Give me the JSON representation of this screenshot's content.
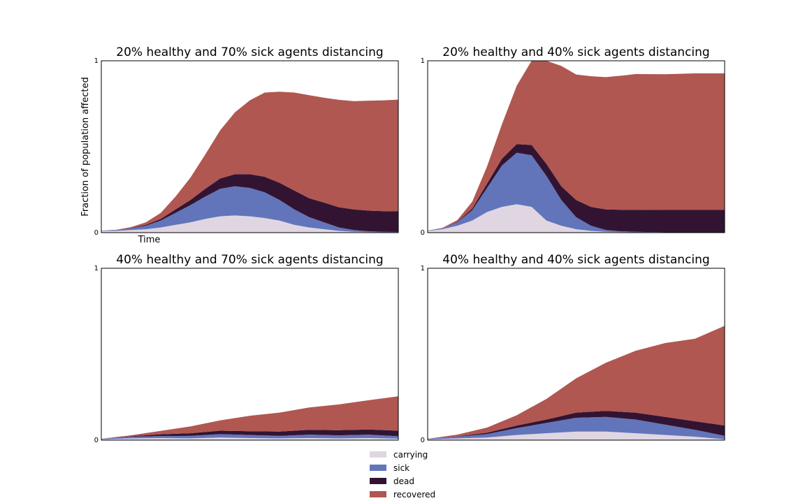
{
  "chart_data": [
    {
      "type": "area",
      "stacked": true,
      "title": "20% healthy and 70% sick agents distancing",
      "xlabel": "Time",
      "ylabel": "Fraction of population affected",
      "ylim": [
        0,
        1
      ],
      "yticks": [
        "0",
        "1"
      ],
      "xlim": [
        0,
        100
      ],
      "series": [
        {
          "name": "carrying",
          "color": "#e0d6e2",
          "points": [
            [
              0,
              0.01
            ],
            [
              5,
              0.01
            ],
            [
              10,
              0.015
            ],
            [
              15,
              0.02
            ],
            [
              20,
              0.03
            ],
            [
              25,
              0.045
            ],
            [
              30,
              0.06
            ],
            [
              35,
              0.08
            ],
            [
              40,
              0.095
            ],
            [
              45,
              0.1
            ],
            [
              50,
              0.095
            ],
            [
              55,
              0.085
            ],
            [
              60,
              0.07
            ],
            [
              65,
              0.045
            ],
            [
              70,
              0.03
            ],
            [
              75,
              0.02
            ],
            [
              80,
              0.01
            ],
            [
              85,
              0.005
            ],
            [
              90,
              0.003
            ],
            [
              95,
              0.002
            ],
            [
              100,
              0.002
            ]
          ]
        },
        {
          "name": "sick",
          "color": "#6275bb",
          "points": [
            [
              0,
              0.002
            ],
            [
              5,
              0.005
            ],
            [
              10,
              0.01
            ],
            [
              15,
              0.02
            ],
            [
              20,
              0.04
            ],
            [
              25,
              0.07
            ],
            [
              30,
              0.1
            ],
            [
              35,
              0.13
            ],
            [
              40,
              0.16
            ],
            [
              45,
              0.17
            ],
            [
              50,
              0.165
            ],
            [
              55,
              0.15
            ],
            [
              60,
              0.12
            ],
            [
              65,
              0.09
            ],
            [
              70,
              0.06
            ],
            [
              75,
              0.04
            ],
            [
              80,
              0.02
            ],
            [
              85,
              0.01
            ],
            [
              90,
              0.005
            ],
            [
              95,
              0.003
            ],
            [
              100,
              0.002
            ]
          ]
        },
        {
          "name": "dead",
          "color": "#321432",
          "points": [
            [
              0,
              0.0
            ],
            [
              5,
              0.0
            ],
            [
              10,
              0.002
            ],
            [
              15,
              0.005
            ],
            [
              20,
              0.01
            ],
            [
              25,
              0.02
            ],
            [
              30,
              0.03
            ],
            [
              35,
              0.045
            ],
            [
              40,
              0.06
            ],
            [
              45,
              0.07
            ],
            [
              50,
              0.08
            ],
            [
              55,
              0.09
            ],
            [
              60,
              0.1
            ],
            [
              65,
              0.11
            ],
            [
              70,
              0.11
            ],
            [
              75,
              0.115
            ],
            [
              80,
              0.118
            ],
            [
              85,
              0.12
            ],
            [
              90,
              0.12
            ],
            [
              95,
              0.12
            ],
            [
              100,
              0.12
            ]
          ]
        },
        {
          "name": "recovered",
          "color": "#b05751",
          "points": [
            [
              0,
              0.0
            ],
            [
              5,
              0.002
            ],
            [
              10,
              0.005
            ],
            [
              15,
              0.015
            ],
            [
              20,
              0.035
            ],
            [
              25,
              0.075
            ],
            [
              30,
              0.13
            ],
            [
              35,
              0.2
            ],
            [
              40,
              0.28
            ],
            [
              45,
              0.36
            ],
            [
              50,
              0.43
            ],
            [
              55,
              0.49
            ],
            [
              60,
              0.53
            ],
            [
              65,
              0.57
            ],
            [
              70,
              0.6
            ],
            [
              75,
              0.61
            ],
            [
              80,
              0.625
            ],
            [
              85,
              0.63
            ],
            [
              90,
              0.64
            ],
            [
              95,
              0.645
            ],
            [
              100,
              0.65
            ]
          ]
        }
      ]
    },
    {
      "type": "area",
      "stacked": true,
      "title": "20% healthy and 40% sick agents distancing",
      "xlabel": "",
      "ylabel": "",
      "ylim": [
        0,
        1
      ],
      "yticks": [
        "0",
        "1"
      ],
      "xlim": [
        0,
        100
      ],
      "series": [
        {
          "name": "carrying",
          "color": "#e0d6e2",
          "points": [
            [
              0,
              0.01
            ],
            [
              5,
              0.02
            ],
            [
              10,
              0.04
            ],
            [
              15,
              0.07
            ],
            [
              20,
              0.12
            ],
            [
              25,
              0.15
            ],
            [
              30,
              0.165
            ],
            [
              35,
              0.15
            ],
            [
              40,
              0.07
            ],
            [
              45,
              0.04
            ],
            [
              50,
              0.02
            ],
            [
              55,
              0.01
            ],
            [
              60,
              0.005
            ],
            [
              65,
              0.003
            ],
            [
              70,
              0.002
            ],
            [
              80,
              0.001
            ],
            [
              90,
              0.001
            ],
            [
              100,
              0.001
            ]
          ]
        },
        {
          "name": "sick",
          "color": "#6275bb",
          "points": [
            [
              0,
              0.002
            ],
            [
              5,
              0.005
            ],
            [
              10,
              0.02
            ],
            [
              15,
              0.06
            ],
            [
              20,
              0.14
            ],
            [
              25,
              0.24
            ],
            [
              30,
              0.3
            ],
            [
              35,
              0.3
            ],
            [
              40,
              0.26
            ],
            [
              45,
              0.15
            ],
            [
              50,
              0.07
            ],
            [
              55,
              0.03
            ],
            [
              60,
              0.01
            ],
            [
              65,
              0.005
            ],
            [
              70,
              0.003
            ],
            [
              80,
              0.001
            ],
            [
              90,
              0.001
            ],
            [
              100,
              0.001
            ]
          ]
        },
        {
          "name": "dead",
          "color": "#321432",
          "points": [
            [
              0,
              0.0
            ],
            [
              5,
              0.0
            ],
            [
              10,
              0.003
            ],
            [
              15,
              0.01
            ],
            [
              20,
              0.025
            ],
            [
              25,
              0.04
            ],
            [
              30,
              0.05
            ],
            [
              35,
              0.06
            ],
            [
              40,
              0.07
            ],
            [
              45,
              0.08
            ],
            [
              50,
              0.1
            ],
            [
              55,
              0.11
            ],
            [
              60,
              0.12
            ],
            [
              65,
              0.125
            ],
            [
              70,
              0.128
            ],
            [
              80,
              0.13
            ],
            [
              90,
              0.13
            ],
            [
              100,
              0.13
            ]
          ]
        },
        {
          "name": "recovered",
          "color": "#b05751",
          "points": [
            [
              0,
              0.0
            ],
            [
              5,
              0.003
            ],
            [
              10,
              0.01
            ],
            [
              15,
              0.04
            ],
            [
              20,
              0.1
            ],
            [
              25,
              0.2
            ],
            [
              30,
              0.34
            ],
            [
              35,
              0.52
            ],
            [
              40,
              0.62
            ],
            [
              45,
              0.7
            ],
            [
              50,
              0.73
            ],
            [
              55,
              0.76
            ],
            [
              60,
              0.77
            ],
            [
              65,
              0.78
            ],
            [
              70,
              0.79
            ],
            [
              80,
              0.79
            ],
            [
              90,
              0.795
            ],
            [
              100,
              0.795
            ]
          ]
        }
      ]
    },
    {
      "type": "area",
      "stacked": true,
      "title": "40% healthy and 70% sick agents distancing",
      "xlabel": "",
      "ylabel": "",
      "ylim": [
        0,
        1
      ],
      "yticks": [
        "0",
        "1"
      ],
      "xlim": [
        0,
        100
      ],
      "series": [
        {
          "name": "carrying",
          "color": "#e0d6e2",
          "points": [
            [
              0,
              0.005
            ],
            [
              10,
              0.01
            ],
            [
              20,
              0.012
            ],
            [
              30,
              0.01
            ],
            [
              40,
              0.015
            ],
            [
              50,
              0.012
            ],
            [
              60,
              0.01
            ],
            [
              70,
              0.012
            ],
            [
              80,
              0.01
            ],
            [
              90,
              0.012
            ],
            [
              100,
              0.008
            ]
          ]
        },
        {
          "name": "sick",
          "color": "#6275bb",
          "points": [
            [
              0,
              0.003
            ],
            [
              10,
              0.01
            ],
            [
              20,
              0.012
            ],
            [
              30,
              0.015
            ],
            [
              40,
              0.02
            ],
            [
              50,
              0.018
            ],
            [
              60,
              0.015
            ],
            [
              70,
              0.02
            ],
            [
              80,
              0.018
            ],
            [
              90,
              0.02
            ],
            [
              100,
              0.015
            ]
          ]
        },
        {
          "name": "dead",
          "color": "#321432",
          "points": [
            [
              0,
              0.0
            ],
            [
              10,
              0.003
            ],
            [
              20,
              0.01
            ],
            [
              30,
              0.015
            ],
            [
              40,
              0.02
            ],
            [
              50,
              0.022
            ],
            [
              60,
              0.025
            ],
            [
              70,
              0.028
            ],
            [
              80,
              0.03
            ],
            [
              90,
              0.03
            ],
            [
              100,
              0.032
            ]
          ]
        },
        {
          "name": "recovered",
          "color": "#b05751",
          "points": [
            [
              0,
              0.0
            ],
            [
              10,
              0.005
            ],
            [
              20,
              0.02
            ],
            [
              30,
              0.04
            ],
            [
              40,
              0.06
            ],
            [
              50,
              0.09
            ],
            [
              60,
              0.11
            ],
            [
              70,
              0.13
            ],
            [
              80,
              0.15
            ],
            [
              90,
              0.17
            ],
            [
              100,
              0.2
            ]
          ]
        }
      ]
    },
    {
      "type": "area",
      "stacked": true,
      "title": "40% healthy and 40% sick agents distancing",
      "xlabel": "",
      "ylabel": "",
      "ylim": [
        0,
        1
      ],
      "yticks": [
        "0",
        "1"
      ],
      "xlim": [
        0,
        100
      ],
      "series": [
        {
          "name": "carrying",
          "color": "#e0d6e2",
          "points": [
            [
              0,
              0.005
            ],
            [
              10,
              0.01
            ],
            [
              20,
              0.015
            ],
            [
              30,
              0.03
            ],
            [
              40,
              0.04
            ],
            [
              50,
              0.05
            ],
            [
              60,
              0.05
            ],
            [
              70,
              0.04
            ],
            [
              80,
              0.03
            ],
            [
              90,
              0.02
            ],
            [
              100,
              0.005
            ]
          ]
        },
        {
          "name": "sick",
          "color": "#6275bb",
          "points": [
            [
              0,
              0.003
            ],
            [
              10,
              0.01
            ],
            [
              20,
              0.02
            ],
            [
              30,
              0.04
            ],
            [
              40,
              0.06
            ],
            [
              50,
              0.08
            ],
            [
              60,
              0.085
            ],
            [
              70,
              0.08
            ],
            [
              80,
              0.06
            ],
            [
              90,
              0.04
            ],
            [
              100,
              0.02
            ]
          ]
        },
        {
          "name": "dead",
          "color": "#321432",
          "points": [
            [
              0,
              0.0
            ],
            [
              10,
              0.002
            ],
            [
              20,
              0.008
            ],
            [
              30,
              0.015
            ],
            [
              40,
              0.02
            ],
            [
              50,
              0.03
            ],
            [
              60,
              0.035
            ],
            [
              70,
              0.04
            ],
            [
              80,
              0.045
            ],
            [
              90,
              0.05
            ],
            [
              100,
              0.06
            ]
          ]
        },
        {
          "name": "recovered",
          "color": "#b05751",
          "points": [
            [
              0,
              0.0
            ],
            [
              10,
              0.01
            ],
            [
              20,
              0.03
            ],
            [
              30,
              0.06
            ],
            [
              40,
              0.12
            ],
            [
              50,
              0.2
            ],
            [
              60,
              0.28
            ],
            [
              70,
              0.36
            ],
            [
              80,
              0.43
            ],
            [
              90,
              0.48
            ],
            [
              100,
              0.58
            ]
          ]
        }
      ]
    }
  ],
  "legend": {
    "placement": "bottom-center",
    "items": [
      {
        "label": "carrying",
        "color": "#e0d6e2"
      },
      {
        "label": "sick",
        "color": "#6275bb"
      },
      {
        "label": "dead",
        "color": "#321432"
      },
      {
        "label": "recovered",
        "color": "#b05751"
      }
    ]
  }
}
